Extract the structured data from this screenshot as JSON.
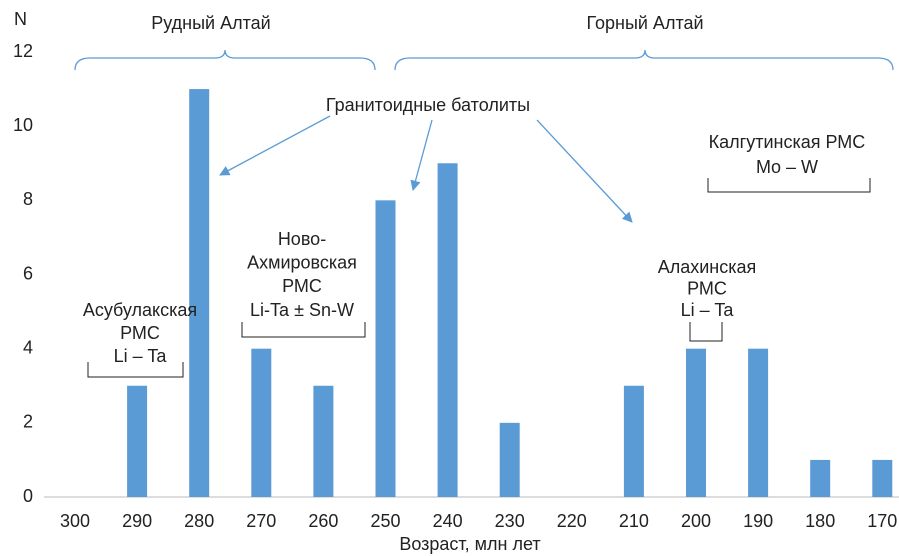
{
  "chart_data": {
    "type": "bar",
    "y_label": "N",
    "x_label": "Возраст, млн лет",
    "categories": [
      300,
      290,
      280,
      270,
      260,
      250,
      240,
      230,
      220,
      210,
      200,
      190,
      180,
      170
    ],
    "values": [
      0,
      3,
      11,
      4,
      3,
      8,
      9,
      2,
      0,
      3,
      4,
      4,
      1,
      1
    ],
    "color": "#5b9bd5",
    "ylim": [
      0,
      12
    ],
    "yticks": [
      0,
      2,
      4,
      6,
      8,
      10,
      12
    ],
    "grid": false,
    "regions": [
      "Рудный Алтай",
      "Горный Алтай"
    ],
    "arrow_label": "Гранитоидные батолиты",
    "annotations": [
      {
        "lines": [
          "Асубулакская",
          "РМС",
          "Li – Ta"
        ]
      },
      {
        "lines": [
          "Ново-",
          "Ахмировская",
          "РМС",
          "Li-Ta ± Sn-W"
        ]
      },
      {
        "lines": [
          "Алахинская",
          "РМС",
          "Li – Ta"
        ]
      },
      {
        "lines": [
          "Калгутинская РМС",
          "Mo – W"
        ]
      }
    ]
  }
}
